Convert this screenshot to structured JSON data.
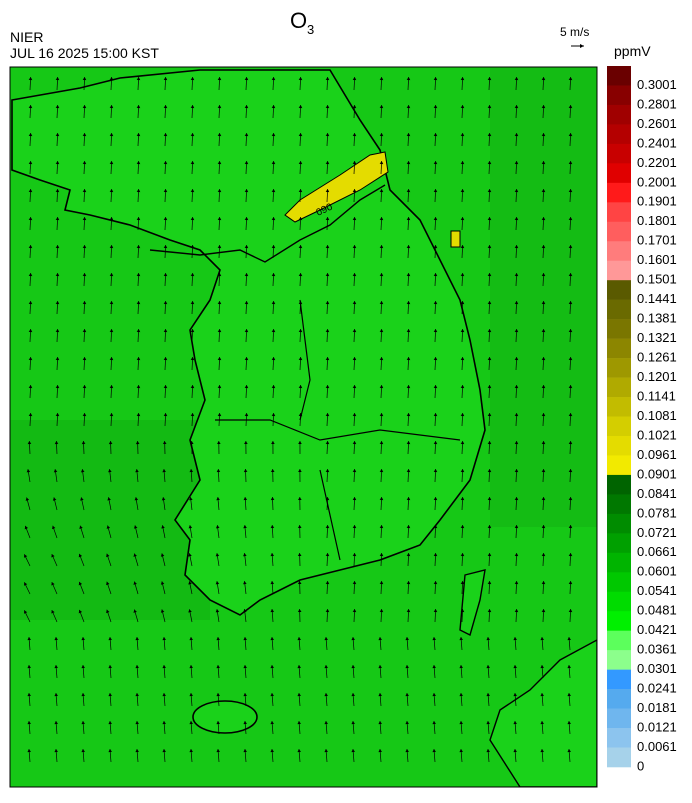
{
  "header": {
    "title": "O",
    "title_subscript": "3",
    "agency": "NIER",
    "datetime": "JUL 16 2025 15:00 KST",
    "wind_scale": "5 m/s"
  },
  "map": {
    "contour_label": "090"
  },
  "colorbar": {
    "unit": "ppmV",
    "labels": [
      "0.3001",
      "0.2801",
      "0.2601",
      "0.2401",
      "0.2201",
      "0.2001",
      "0.1901",
      "0.1801",
      "0.1701",
      "0.1601",
      "0.1501",
      "0.1441",
      "0.1381",
      "0.1321",
      "0.1261",
      "0.1201",
      "0.1141",
      "0.1081",
      "0.1021",
      "0.0961",
      "0.0901",
      "0.0841",
      "0.0781",
      "0.0721",
      "0.0661",
      "0.0601",
      "0.0541",
      "0.0481",
      "0.0421",
      "0.0361",
      "0.0301",
      "0.0241",
      "0.0181",
      "0.0121",
      "0.0061",
      "0"
    ],
    "colors": [
      "#6a0000",
      "#880000",
      "#a00000",
      "#b40000",
      "#c80000",
      "#e00000",
      "#ff1a1a",
      "#ff4444",
      "#ff5e5e",
      "#ff7c7c",
      "#ff9898",
      "#5a5a00",
      "#6a6a00",
      "#7a7600",
      "#8c8600",
      "#9e9800",
      "#b0aa00",
      "#c2bc00",
      "#d4ce00",
      "#e4dc00",
      "#f2ea00",
      "#006400",
      "#007800",
      "#008c00",
      "#00a000",
      "#00b400",
      "#00c800",
      "#00dc00",
      "#00f000",
      "#5cff5c",
      "#8cff8c",
      "#3399ff",
      "#55aaee",
      "#6fb6ee",
      "#8cc4ee",
      "#a6d2ea"
    ]
  }
}
